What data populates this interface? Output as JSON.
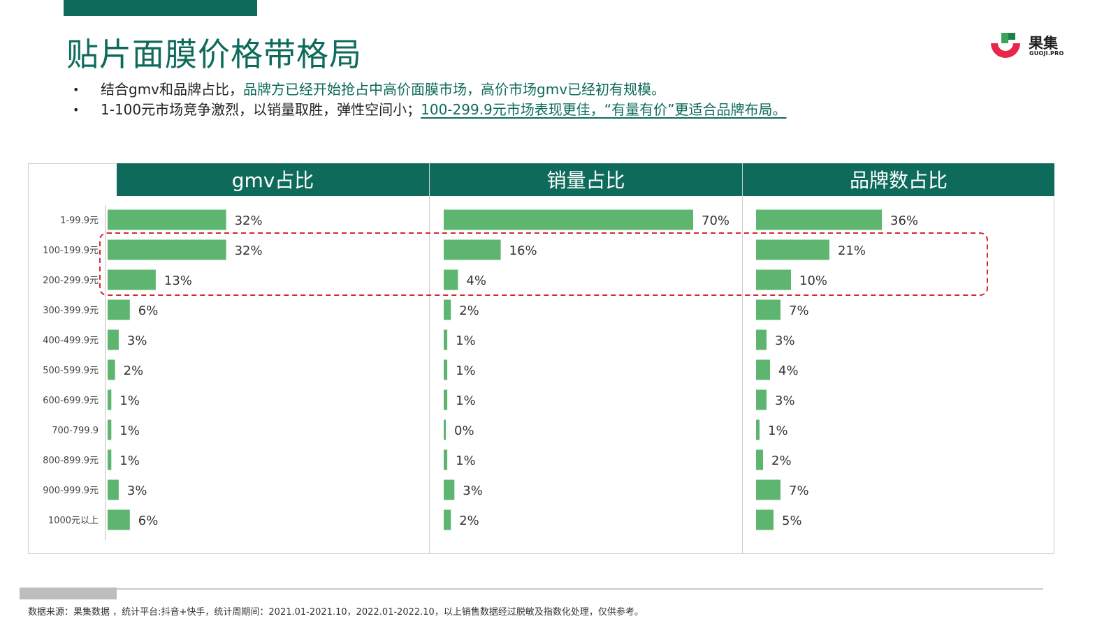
{
  "title": "贴片面膜价格带格局",
  "logo": {
    "name": "果集",
    "sub": "GUOJI.PRO"
  },
  "bullets": [
    {
      "plain": "结合gmv和品牌占比，",
      "highlight": "品牌方已经开始抢占中高价面膜市场，高价市场gmv已经初有规模。"
    },
    {
      "plain": "1-100元市场竞争激烈，以销量取胜，弹性空间小；",
      "highlight": "100-299.9元市场表现更佳，“有量有价”更适合品牌布局。"
    }
  ],
  "colors": {
    "header": "#0e6b5b",
    "bar": "#5db56f",
    "highlight_box": "#d9262c",
    "frame": "#cfcfcf"
  },
  "chart_data": {
    "type": "bar",
    "orientation": "horizontal",
    "categories": [
      "1-99.9元",
      "100-199.9元",
      "200-299.9元",
      "300-399.9元",
      "400-499.9元",
      "500-599.9元",
      "600-699.9元",
      "700-799.9",
      "800-899.9元",
      "900-999.9元",
      "1000元以上"
    ],
    "panels": [
      {
        "title": "gmv占比",
        "values": [
          32,
          32,
          13,
          6,
          3,
          2,
          1,
          1,
          1,
          3,
          6
        ],
        "labels": [
          "32%",
          "32%",
          "13%",
          "6%",
          "3%",
          "2%",
          "1%",
          "1%",
          "1%",
          "3%",
          "6%"
        ]
      },
      {
        "title": "销量占比",
        "values": [
          70,
          16,
          4,
          2,
          1,
          1,
          1,
          0,
          1,
          3,
          2
        ],
        "labels": [
          "70%",
          "16%",
          "4%",
          "2%",
          "1%",
          "1%",
          "1%",
          "0%",
          "1%",
          "3%",
          "2%"
        ]
      },
      {
        "title": "品牌数占比",
        "values": [
          36,
          21,
          10,
          7,
          3,
          4,
          3,
          1,
          2,
          7,
          5
        ],
        "labels": [
          "36%",
          "21%",
          "10%",
          "7%",
          "3%",
          "4%",
          "3%",
          "1%",
          "2%",
          "7%",
          "5%"
        ]
      }
    ],
    "highlighted_categories": [
      "100-199.9元",
      "200-299.9元"
    ],
    "unit": "%"
  },
  "source": "数据来源：果集数据 ，统计平台:抖音+快手，统计周期间：2021.01-2021.10，2022.01-2022.10，以上销售数据经过脱敏及指数化处理，仅供参考。"
}
